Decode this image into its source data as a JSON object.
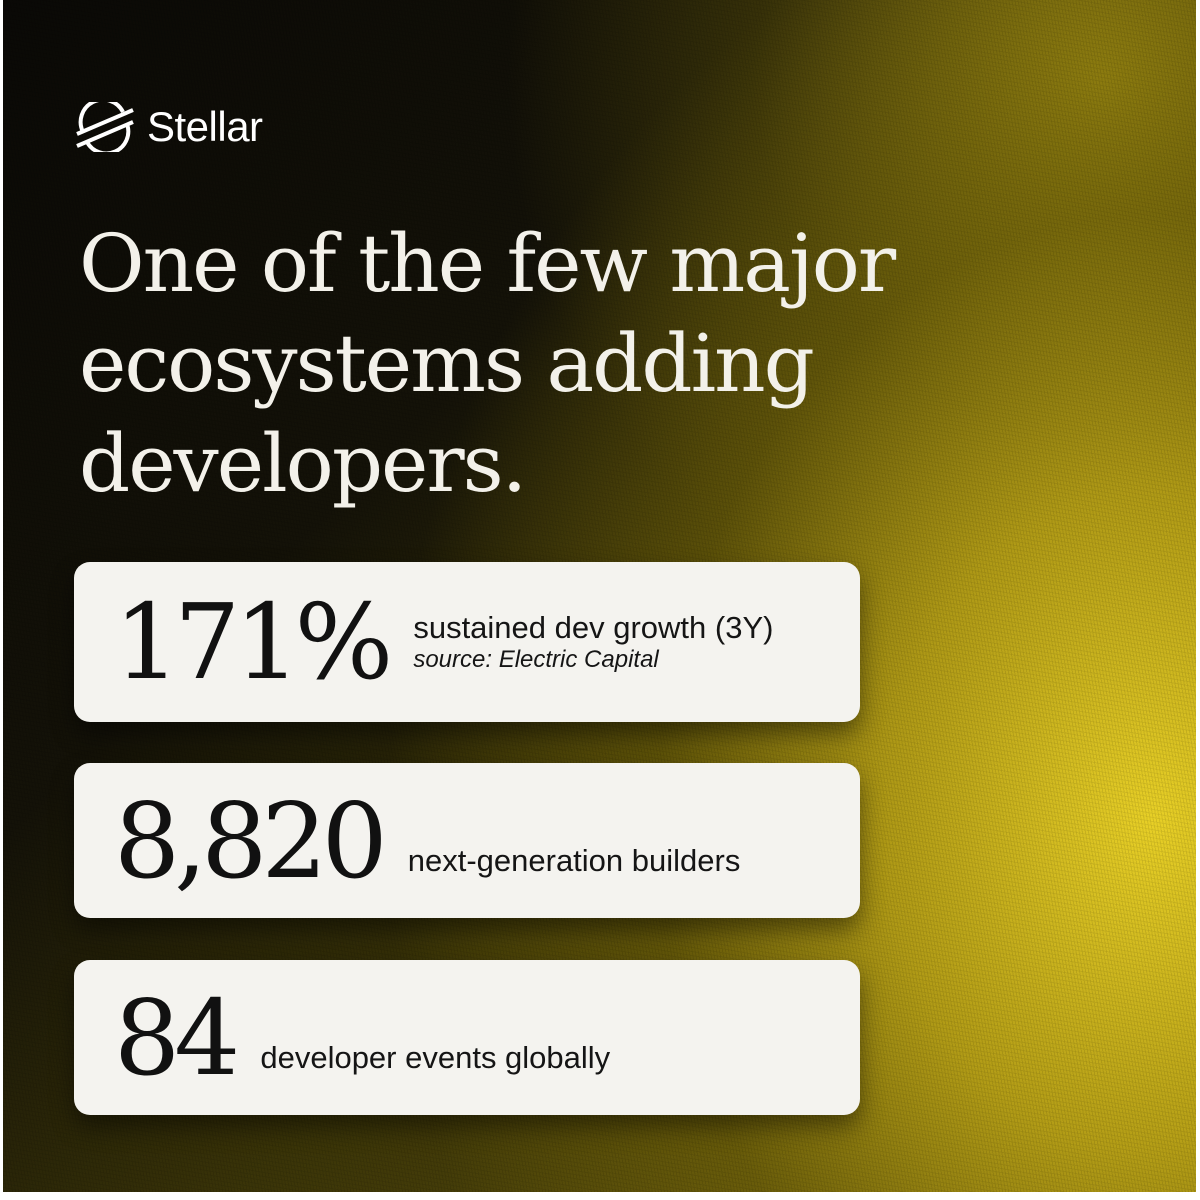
{
  "brand": {
    "name": "Stellar",
    "icon": "stellar-logo-icon"
  },
  "headline": "One of the few major ecosystems adding developers.",
  "stats": [
    {
      "value": "171%",
      "label": "sustained dev growth (3Y)",
      "source": "source: Electric Capital"
    },
    {
      "value": "8,820",
      "label": "next-generation builders"
    },
    {
      "value": "84",
      "label": "developer events globally"
    }
  ],
  "colors": {
    "accent": "#e6cc2a",
    "card": "#f4f3ef",
    "dark": "#0a0906"
  }
}
